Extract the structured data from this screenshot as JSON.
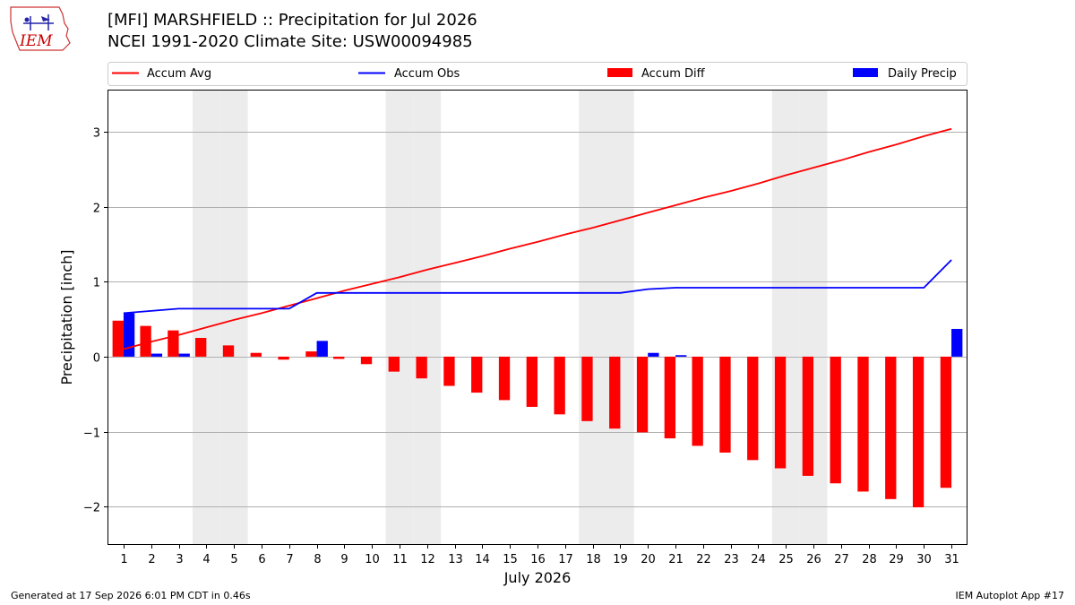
{
  "header": {
    "title_line1": "[MFI] MARSHFIELD :: Precipitation for Jul 2026",
    "title_line2": "NCEI 1991-2020 Climate Site: USW00094985"
  },
  "logo": {
    "text": "IEM",
    "color": "#cc0000"
  },
  "footer": {
    "left": "Generated at 17 Sep 2026 6:01 PM CDT in 0.46s",
    "right": "IEM Autoplot App #17"
  },
  "colors": {
    "avg": "#ff0000",
    "obs": "#0000ff",
    "diff": "#ff0000",
    "daily": "#0000ff",
    "weekend": "#ececec",
    "grid": "#b0b0b0"
  },
  "chart_data": {
    "type": "bar",
    "xlabel": "July 2026",
    "ylabel": "Precipitation [inch]",
    "ylim": [
      -2.5,
      3.55
    ],
    "yticks": [
      -2,
      -1,
      0,
      1,
      2,
      3
    ],
    "ytick_labels": [
      "−2",
      "−1",
      "0",
      "1",
      "2",
      "3"
    ],
    "grid": "horizontal",
    "legend_placement": "top",
    "x": [
      1,
      2,
      3,
      4,
      5,
      6,
      7,
      8,
      9,
      10,
      11,
      12,
      13,
      14,
      15,
      16,
      17,
      18,
      19,
      20,
      21,
      22,
      23,
      24,
      25,
      26,
      27,
      28,
      29,
      30,
      31
    ],
    "weekend_days": [
      4,
      5,
      11,
      12,
      18,
      19,
      25,
      26
    ],
    "series": [
      {
        "name": "Accum Avg",
        "kind": "line",
        "color": "#ff0000",
        "values": [
          0.1,
          0.2,
          0.29,
          0.39,
          0.49,
          0.58,
          0.68,
          0.78,
          0.88,
          0.97,
          1.06,
          1.16,
          1.25,
          1.34,
          1.44,
          1.53,
          1.63,
          1.72,
          1.82,
          1.92,
          2.02,
          2.12,
          2.21,
          2.31,
          2.42,
          2.52,
          2.62,
          2.73,
          2.83,
          2.94,
          3.04
        ]
      },
      {
        "name": "Accum Obs",
        "kind": "line",
        "color": "#0000ff",
        "values": [
          0.58,
          0.61,
          0.64,
          0.64,
          0.64,
          0.64,
          0.64,
          0.85,
          0.85,
          0.85,
          0.85,
          0.85,
          0.85,
          0.85,
          0.85,
          0.85,
          0.85,
          0.85,
          0.85,
          0.9,
          0.92,
          0.92,
          0.92,
          0.92,
          0.92,
          0.92,
          0.92,
          0.92,
          0.92,
          0.92,
          1.29
        ]
      },
      {
        "name": "Accum Diff",
        "kind": "bar",
        "color": "#ff0000",
        "values": [
          0.48,
          0.41,
          0.35,
          0.25,
          0.15,
          0.05,
          -0.04,
          0.07,
          -0.03,
          -0.1,
          -0.2,
          -0.29,
          -0.39,
          -0.48,
          -0.58,
          -0.67,
          -0.77,
          -0.86,
          -0.96,
          -1.01,
          -1.09,
          -1.19,
          -1.28,
          -1.38,
          -1.49,
          -1.59,
          -1.69,
          -1.8,
          -1.9,
          -2.01,
          -1.75
        ]
      },
      {
        "name": "Daily Precip",
        "kind": "bar",
        "color": "#0000ff",
        "values": [
          0.58,
          0.04,
          0.04,
          0,
          0,
          0,
          0,
          0.21,
          0,
          0,
          0,
          0,
          0,
          0,
          0,
          0,
          0,
          0,
          0,
          0.05,
          0.02,
          0,
          0,
          0,
          0,
          0,
          0,
          0,
          0,
          0,
          0.37
        ]
      }
    ]
  }
}
